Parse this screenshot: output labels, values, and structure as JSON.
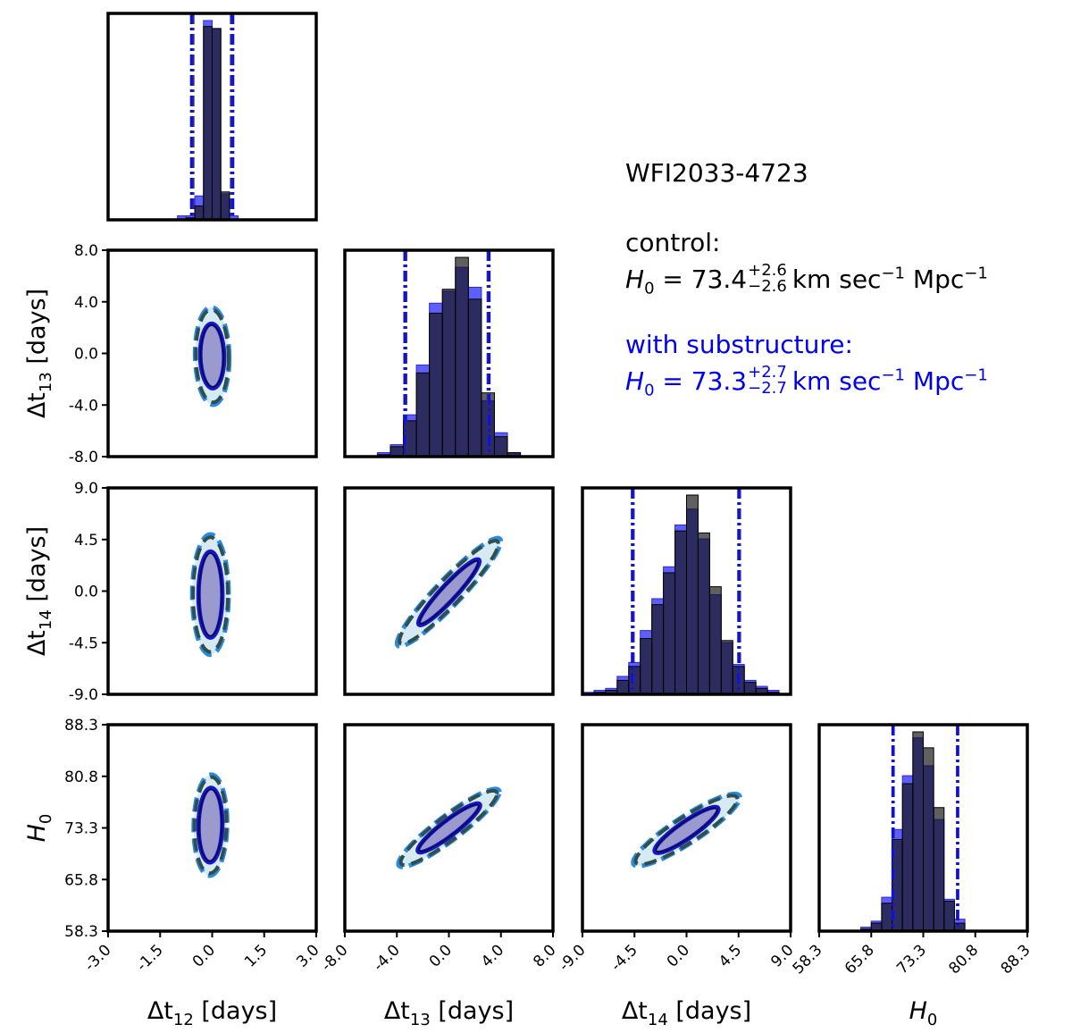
{
  "annotation": {
    "system": "WFI2033-4723",
    "control": {
      "label": "control:",
      "symbol": "H",
      "subscript": "0",
      "value": "73.4",
      "err_plus": "+2.6",
      "err_minus": "−2.6",
      "units": "km sec",
      "units_exp1": "−1",
      "units2": "Mpc",
      "units_exp2": "−1"
    },
    "substructure": {
      "label": "with substructure:",
      "symbol": "H",
      "subscript": "0",
      "value": "73.3",
      "err_plus": "+2.7",
      "err_minus": "−2.7",
      "units": "km sec",
      "units_exp1": "−1",
      "units2": "Mpc",
      "units_exp2": "−1"
    }
  },
  "colors": {
    "control": "#555555",
    "control_dashed": "#2f4f4f",
    "substructure": "#1515cc",
    "substructure_dashed": "#2a8ae0",
    "fill_inner": "#9a9acf",
    "fill_outer": "#d6eaf4"
  },
  "chart_data": {
    "type": "corner",
    "parameters": [
      {
        "key": "dt12",
        "label": "Δt",
        "sub": "12",
        "unit": " [days]",
        "range": [
          -3.0,
          3.0
        ],
        "ticks": [
          "-3.0",
          "-1.5",
          "0.0",
          "1.5",
          "3.0"
        ]
      },
      {
        "key": "dt13",
        "label": "Δt",
        "sub": "13",
        "unit": " [days]",
        "range": [
          -8.0,
          8.0
        ],
        "ticks": [
          "-8.0",
          "-4.0",
          "0.0",
          "4.0",
          "8.0"
        ]
      },
      {
        "key": "dt14",
        "label": "Δt",
        "sub": "14",
        "unit": " [days]",
        "range": [
          -9.0,
          9.0
        ],
        "ticks": [
          "-9.0",
          "-4.5",
          "0.0",
          "4.5",
          "9.0"
        ]
      },
      {
        "key": "H0",
        "label": "H",
        "sub": "0",
        "unit": "",
        "range": [
          58.3,
          88.3
        ],
        "ticks": [
          "58.3",
          "65.8",
          "73.3",
          "80.8",
          "88.3"
        ]
      }
    ],
    "histograms": [
      {
        "param": "dt12",
        "bin_edges": [
          -1.0,
          -0.75,
          -0.5,
          -0.25,
          0.0,
          0.25,
          0.5,
          0.75,
          1.0
        ],
        "control": [
          0.0,
          0.01,
          0.07,
          0.97,
          0.96,
          0.14,
          0.0,
          0.0
        ],
        "substructure": [
          0.02,
          0.02,
          0.12,
          1.0,
          0.96,
          0.13,
          0.02,
          0.0
        ],
        "intervals": {
          "control": [
            -0.55,
            0.55
          ],
          "substructure": [
            -0.6,
            0.6
          ]
        }
      },
      {
        "param": "dt13",
        "bin_edges": [
          -5.5,
          -4.5,
          -3.5,
          -2.5,
          -1.5,
          -0.5,
          0.5,
          1.5,
          2.5,
          3.5,
          4.5,
          5.5
        ],
        "control": [
          0.01,
          0.05,
          0.18,
          0.42,
          0.72,
          0.84,
          1.0,
          0.79,
          0.32,
          0.1,
          0.02
        ],
        "substructure": [
          0.02,
          0.06,
          0.21,
          0.46,
          0.77,
          0.83,
          0.95,
          0.85,
          0.28,
          0.12,
          0.02
        ],
        "intervals": {
          "control": [
            -3.3,
            3.0
          ],
          "substructure": [
            -3.4,
            3.1
          ]
        }
      },
      {
        "param": "dt14",
        "bin_edges": [
          -9.0,
          -8.0,
          -7.0,
          -6.0,
          -5.0,
          -4.0,
          -3.0,
          -2.0,
          -1.0,
          0.0,
          1.0,
          2.0,
          3.0,
          4.0,
          5.0,
          6.0,
          7.0,
          8.0,
          9.0
        ],
        "control": [
          0.0,
          0.01,
          0.02,
          0.07,
          0.14,
          0.28,
          0.45,
          0.61,
          0.82,
          1.0,
          0.81,
          0.54,
          0.27,
          0.14,
          0.06,
          0.03,
          0.01,
          0.0
        ],
        "substructure": [
          0.01,
          0.02,
          0.03,
          0.09,
          0.16,
          0.32,
          0.48,
          0.64,
          0.85,
          0.93,
          0.78,
          0.5,
          0.26,
          0.15,
          0.07,
          0.04,
          0.02,
          0.0
        ],
        "intervals": {
          "control": [
            -4.6,
            4.6
          ],
          "substructure": [
            -4.7,
            4.5
          ]
        }
      },
      {
        "param": "H0",
        "bin_edges": [
          64.3,
          65.8,
          67.3,
          68.8,
          70.3,
          71.8,
          73.3,
          74.8,
          76.3,
          77.8,
          79.3
        ],
        "control": [
          0.01,
          0.04,
          0.14,
          0.46,
          0.74,
          1.0,
          0.92,
          0.62,
          0.15,
          0.04
        ],
        "substructure": [
          0.02,
          0.05,
          0.17,
          0.51,
          0.78,
          0.97,
          0.83,
          0.56,
          0.16,
          0.06
        ],
        "intervals": {
          "control": [
            69.0,
            78.2
          ],
          "substructure": [
            68.9,
            78.3
          ]
        }
      }
    ],
    "contours": [
      {
        "x": "dt12",
        "y": "dt13",
        "center": [
          0.0,
          -0.2
        ],
        "s68": [
          0.33,
          2.4
        ],
        "s95": [
          0.47,
          3.6
        ],
        "rho": -0.05
      },
      {
        "x": "dt12",
        "y": "dt14",
        "center": [
          -0.05,
          -0.3
        ],
        "s68": [
          0.33,
          3.6
        ],
        "s95": [
          0.5,
          5.0
        ],
        "rho": 0.0
      },
      {
        "x": "dt13",
        "y": "dt14",
        "center": [
          0.0,
          -0.1
        ],
        "s68": [
          2.25,
          2.75
        ],
        "s95": [
          3.8,
          4.5
        ],
        "rho": 0.94
      },
      {
        "x": "dt12",
        "y": "H0",
        "center": [
          -0.05,
          73.7
        ],
        "s68": [
          0.33,
          5.2
        ],
        "s95": [
          0.46,
          7.0
        ],
        "rho": 0.05
      },
      {
        "x": "dt13",
        "y": "H0",
        "center": [
          0.0,
          73.3
        ],
        "s68": [
          2.3,
          3.4
        ],
        "s95": [
          3.7,
          5.4
        ],
        "rho": 0.92
      },
      {
        "x": "dt14",
        "y": "H0",
        "center": [
          0.0,
          73.0
        ],
        "s68": [
          2.65,
          3.2
        ],
        "s95": [
          4.4,
          5.0
        ],
        "rho": 0.9
      }
    ]
  }
}
